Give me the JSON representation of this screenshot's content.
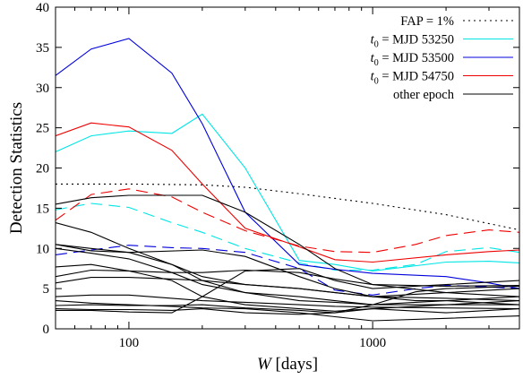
{
  "chart_data": {
    "type": "line",
    "xscale": "log",
    "xlabel_italic": "W",
    "xlabel_rest": " [days]",
    "ylabel": "Detection Statistics",
    "xlim": [
      50,
      4000
    ],
    "ylim": [
      0,
      40
    ],
    "x_ticks": [
      {
        "value": 100,
        "label": "100"
      },
      {
        "value": 1000,
        "label": "1000"
      }
    ],
    "y_ticks": [
      {
        "value": 0,
        "label": "0"
      },
      {
        "value": 5,
        "label": "5"
      },
      {
        "value": 10,
        "label": "10"
      },
      {
        "value": 15,
        "label": "15"
      },
      {
        "value": 20,
        "label": "20"
      },
      {
        "value": 25,
        "label": "25"
      },
      {
        "value": 30,
        "label": "30"
      },
      {
        "value": 35,
        "label": "35"
      },
      {
        "value": 40,
        "label": "40"
      }
    ],
    "legend_position": "top-right",
    "legend": [
      {
        "key": "fap",
        "pre": "FAP = 1%",
        "sub": "",
        "post": "",
        "color": "#000000",
        "dash": "2,4"
      },
      {
        "key": "t53250",
        "pre": "t",
        "sub": "0",
        "post": " = MJD 53250",
        "color": "#00e5e5",
        "dash": ""
      },
      {
        "key": "t53500",
        "pre": "t",
        "sub": "0",
        "post": " = MJD 53500",
        "color": "#0000dd",
        "dash": ""
      },
      {
        "key": "t54750",
        "pre": "t",
        "sub": "0",
        "post": " = MJD 54750",
        "color": "#ee0000",
        "dash": ""
      },
      {
        "key": "other",
        "pre": "other epoch",
        "sub": "",
        "post": "",
        "color": "#000000",
        "dash": ""
      }
    ],
    "series": [
      {
        "group": "fap",
        "color": "#000000",
        "style": "dotted",
        "points": [
          [
            50,
            18
          ],
          [
            100,
            18
          ],
          [
            200,
            17.9
          ],
          [
            300,
            17.6
          ],
          [
            500,
            16.8
          ],
          [
            1000,
            15.6
          ],
          [
            2000,
            14.2
          ],
          [
            4000,
            12.3
          ]
        ]
      },
      {
        "group": "t53250",
        "color": "#00e5e5",
        "style": "solid",
        "points": [
          [
            50,
            22
          ],
          [
            70,
            24
          ],
          [
            100,
            24.6
          ],
          [
            150,
            24.3
          ],
          [
            200,
            26.7
          ],
          [
            300,
            20
          ],
          [
            500,
            8.5
          ],
          [
            700,
            8
          ],
          [
            1000,
            7.2
          ],
          [
            2000,
            8.3
          ],
          [
            3000,
            8.4
          ],
          [
            4000,
            8.2
          ]
        ]
      },
      {
        "group": "t53250",
        "color": "#00e5e5",
        "style": "dashed",
        "points": [
          [
            50,
            14.8
          ],
          [
            70,
            15.6
          ],
          [
            100,
            15.1
          ],
          [
            150,
            13.2
          ],
          [
            200,
            12
          ],
          [
            300,
            10
          ],
          [
            500,
            8.2
          ],
          [
            700,
            7.3
          ],
          [
            1000,
            7.3
          ],
          [
            1500,
            8
          ],
          [
            2000,
            9.6
          ],
          [
            3000,
            10.1
          ],
          [
            4000,
            9.5
          ]
        ]
      },
      {
        "group": "t53500",
        "color": "#0000dd",
        "style": "solid",
        "points": [
          [
            50,
            31.5
          ],
          [
            70,
            34.8
          ],
          [
            100,
            36.1
          ],
          [
            150,
            31.8
          ],
          [
            200,
            25.5
          ],
          [
            300,
            14.5
          ],
          [
            500,
            8
          ],
          [
            700,
            7.4
          ],
          [
            1000,
            6.9
          ],
          [
            2000,
            6.5
          ],
          [
            3000,
            5.7
          ],
          [
            4000,
            5
          ]
        ]
      },
      {
        "group": "t53500",
        "color": "#0000dd",
        "style": "dashed",
        "points": [
          [
            50,
            9.2
          ],
          [
            70,
            9.8
          ],
          [
            100,
            10.4
          ],
          [
            150,
            10.1
          ],
          [
            200,
            10
          ],
          [
            300,
            9.5
          ],
          [
            500,
            7.5
          ],
          [
            700,
            4.8
          ],
          [
            1000,
            4.2
          ],
          [
            1500,
            5
          ],
          [
            2000,
            5.4
          ],
          [
            3000,
            5.2
          ],
          [
            4000,
            5
          ]
        ]
      },
      {
        "group": "t54750",
        "color": "#ee0000",
        "style": "solid",
        "points": [
          [
            50,
            24
          ],
          [
            70,
            25.6
          ],
          [
            100,
            25.1
          ],
          [
            150,
            22.2
          ],
          [
            200,
            18
          ],
          [
            300,
            12.5
          ],
          [
            500,
            10.2
          ],
          [
            700,
            8.6
          ],
          [
            1000,
            8.3
          ],
          [
            2000,
            9.2
          ],
          [
            3000,
            9.6
          ],
          [
            4000,
            9.8
          ]
        ]
      },
      {
        "group": "t54750",
        "color": "#ee0000",
        "style": "dashed",
        "points": [
          [
            50,
            13.5
          ],
          [
            70,
            16.7
          ],
          [
            100,
            17.4
          ],
          [
            150,
            16.4
          ],
          [
            200,
            14.5
          ],
          [
            300,
            12.2
          ],
          [
            500,
            10.3
          ],
          [
            700,
            9.6
          ],
          [
            1000,
            9.5
          ],
          [
            1500,
            10.5
          ],
          [
            2000,
            11.6
          ],
          [
            3000,
            12.3
          ],
          [
            4000,
            12
          ]
        ]
      },
      {
        "group": "other",
        "color": "#000000",
        "style": "solid",
        "points": [
          [
            50,
            15.5
          ],
          [
            70,
            16.3
          ],
          [
            100,
            16.6
          ],
          [
            200,
            16.6
          ],
          [
            300,
            14.5
          ],
          [
            500,
            10.5
          ],
          [
            700,
            7.5
          ],
          [
            1000,
            5.5
          ],
          [
            2000,
            4.5
          ],
          [
            4000,
            4
          ]
        ]
      },
      {
        "group": "other",
        "color": "#000000",
        "style": "solid",
        "points": [
          [
            50,
            13.2
          ],
          [
            70,
            12
          ],
          [
            100,
            10
          ],
          [
            150,
            8
          ],
          [
            200,
            6
          ],
          [
            300,
            4.5
          ],
          [
            500,
            4
          ],
          [
            700,
            3.5
          ],
          [
            1000,
            3
          ],
          [
            2000,
            3
          ],
          [
            4000,
            3
          ]
        ]
      },
      {
        "group": "other",
        "color": "#000000",
        "style": "solid",
        "points": [
          [
            50,
            10.5
          ],
          [
            70,
            10
          ],
          [
            100,
            9.5
          ],
          [
            150,
            8
          ],
          [
            200,
            6.5
          ],
          [
            300,
            5.5
          ],
          [
            500,
            5
          ],
          [
            700,
            4.5
          ],
          [
            1000,
            4
          ],
          [
            2000,
            4.5
          ],
          [
            4000,
            5
          ]
        ]
      },
      {
        "group": "other",
        "color": "#000000",
        "style": "solid",
        "points": [
          [
            50,
            10.5
          ],
          [
            70,
            9.7
          ],
          [
            100,
            9.5
          ],
          [
            200,
            9.8
          ],
          [
            300,
            9
          ],
          [
            500,
            6.5
          ],
          [
            700,
            5
          ],
          [
            1000,
            4
          ],
          [
            1500,
            3.5
          ],
          [
            2000,
            3.5
          ],
          [
            4000,
            3
          ]
        ]
      },
      {
        "group": "other",
        "color": "#000000",
        "style": "solid",
        "points": [
          [
            50,
            10
          ],
          [
            70,
            9.4
          ],
          [
            100,
            8.7
          ],
          [
            150,
            7
          ],
          [
            200,
            5.5
          ],
          [
            300,
            4.5
          ],
          [
            500,
            3.5
          ],
          [
            700,
            3.3
          ],
          [
            1000,
            3
          ],
          [
            2000,
            3.5
          ],
          [
            4000,
            4
          ]
        ]
      },
      {
        "group": "other",
        "color": "#000000",
        "style": "solid",
        "points": [
          [
            50,
            7.7
          ],
          [
            70,
            8
          ],
          [
            100,
            7.2
          ],
          [
            150,
            6
          ],
          [
            200,
            4
          ],
          [
            300,
            3
          ],
          [
            500,
            2.5
          ],
          [
            700,
            2.2
          ],
          [
            1000,
            2.5
          ],
          [
            2000,
            3
          ],
          [
            4000,
            3.5
          ]
        ]
      },
      {
        "group": "other",
        "color": "#000000",
        "style": "solid",
        "points": [
          [
            50,
            6.5
          ],
          [
            70,
            7.3
          ],
          [
            100,
            7.2
          ],
          [
            150,
            7
          ],
          [
            200,
            7
          ],
          [
            300,
            7.3
          ],
          [
            500,
            7
          ],
          [
            700,
            6.2
          ],
          [
            1000,
            5.5
          ],
          [
            2000,
            5.3
          ],
          [
            4000,
            5.4
          ]
        ]
      },
      {
        "group": "other",
        "color": "#000000",
        "style": "solid",
        "points": [
          [
            50,
            5.7
          ],
          [
            70,
            6.4
          ],
          [
            100,
            6.4
          ],
          [
            150,
            6.2
          ],
          [
            200,
            6
          ],
          [
            300,
            5.5
          ],
          [
            500,
            5
          ],
          [
            700,
            4.5
          ],
          [
            1000,
            4
          ],
          [
            2000,
            3.8
          ],
          [
            4000,
            3.5
          ]
        ]
      },
      {
        "group": "other",
        "color": "#000000",
        "style": "solid",
        "points": [
          [
            50,
            4
          ],
          [
            70,
            4.2
          ],
          [
            100,
            4.2
          ],
          [
            150,
            3.8
          ],
          [
            200,
            3.5
          ],
          [
            300,
            3.3
          ],
          [
            500,
            3
          ],
          [
            700,
            2.8
          ],
          [
            1000,
            2.7
          ],
          [
            2000,
            2.6
          ],
          [
            4000,
            2.5
          ]
        ]
      },
      {
        "group": "other",
        "color": "#000000",
        "style": "solid",
        "points": [
          [
            50,
            3.5
          ],
          [
            70,
            3.2
          ],
          [
            100,
            3
          ],
          [
            150,
            2.8
          ],
          [
            200,
            2.6
          ],
          [
            300,
            2.5
          ],
          [
            500,
            2
          ],
          [
            700,
            1.5
          ],
          [
            1000,
            1
          ],
          [
            2000,
            1.3
          ],
          [
            4000,
            1.6
          ]
        ]
      },
      {
        "group": "other",
        "color": "#000000",
        "style": "solid",
        "points": [
          [
            50,
            2.9
          ],
          [
            70,
            3
          ],
          [
            100,
            2.9
          ],
          [
            150,
            2.9
          ],
          [
            200,
            3
          ],
          [
            300,
            2.6
          ],
          [
            500,
            2.3
          ],
          [
            700,
            2
          ],
          [
            1000,
            2.5
          ],
          [
            2000,
            2
          ],
          [
            4000,
            2.5
          ]
        ]
      },
      {
        "group": "other",
        "color": "#000000",
        "style": "solid",
        "points": [
          [
            50,
            2.3
          ],
          [
            70,
            2.3
          ],
          [
            100,
            2.1
          ],
          [
            150,
            2
          ],
          [
            200,
            4
          ],
          [
            300,
            7.2
          ],
          [
            500,
            7.5
          ],
          [
            700,
            6
          ],
          [
            1000,
            5
          ],
          [
            2000,
            5.5
          ],
          [
            4000,
            6
          ]
        ]
      },
      {
        "group": "other",
        "color": "#000000",
        "style": "solid",
        "points": [
          [
            50,
            2.5
          ],
          [
            70,
            2.4
          ],
          [
            100,
            2.4
          ],
          [
            150,
            2.3
          ],
          [
            200,
            2.5
          ],
          [
            300,
            2
          ],
          [
            500,
            1.8
          ],
          [
            700,
            2
          ],
          [
            1000,
            3
          ],
          [
            1500,
            4.6
          ],
          [
            2000,
            5
          ],
          [
            4000,
            5.3
          ]
        ]
      }
    ]
  }
}
